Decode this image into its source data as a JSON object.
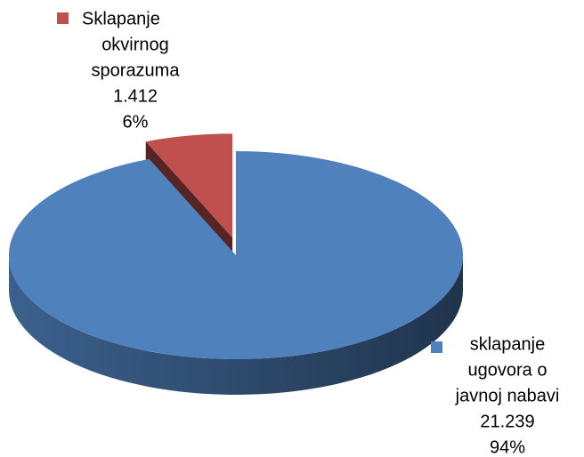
{
  "chart_data": {
    "type": "pie3d",
    "categories": [
      [
        "Sklapanje",
        "okvirnog",
        "sporazuma"
      ],
      [
        "sklapanje",
        "ugovora o",
        "javnoj nabavi"
      ]
    ],
    "values": [
      1412,
      21239
    ],
    "value_labels": [
      "1.412",
      "21.239"
    ],
    "percents": [
      6,
      94
    ],
    "percent_labels": [
      "6%",
      "94%"
    ],
    "colors": [
      "#c0504d",
      "#4f81bd"
    ],
    "explode": [
      0
    ]
  }
}
